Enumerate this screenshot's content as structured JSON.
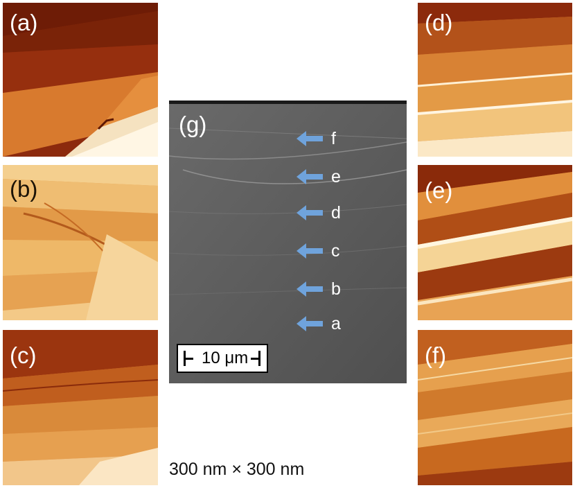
{
  "panels": {
    "a": {
      "label": "(a)"
    },
    "b": {
      "label": "(b)"
    },
    "c": {
      "label": "(c)"
    },
    "d": {
      "label": "(d)"
    },
    "e": {
      "label": "(e)"
    },
    "f": {
      "label": "(f)"
    }
  },
  "sem": {
    "label": "(g)",
    "arrows": [
      "f",
      "e",
      "d",
      "c",
      "b",
      "a"
    ],
    "arrow_color": "#6fa3dc",
    "scale_bar": "10 μm"
  },
  "caption": "300 nm × 300 nm",
  "colors": {
    "afm_dark": "#7a1e08",
    "afm_mid": "#d9792a",
    "afm_light": "#fff3dc",
    "sem_gray": "#5e5e5e"
  }
}
